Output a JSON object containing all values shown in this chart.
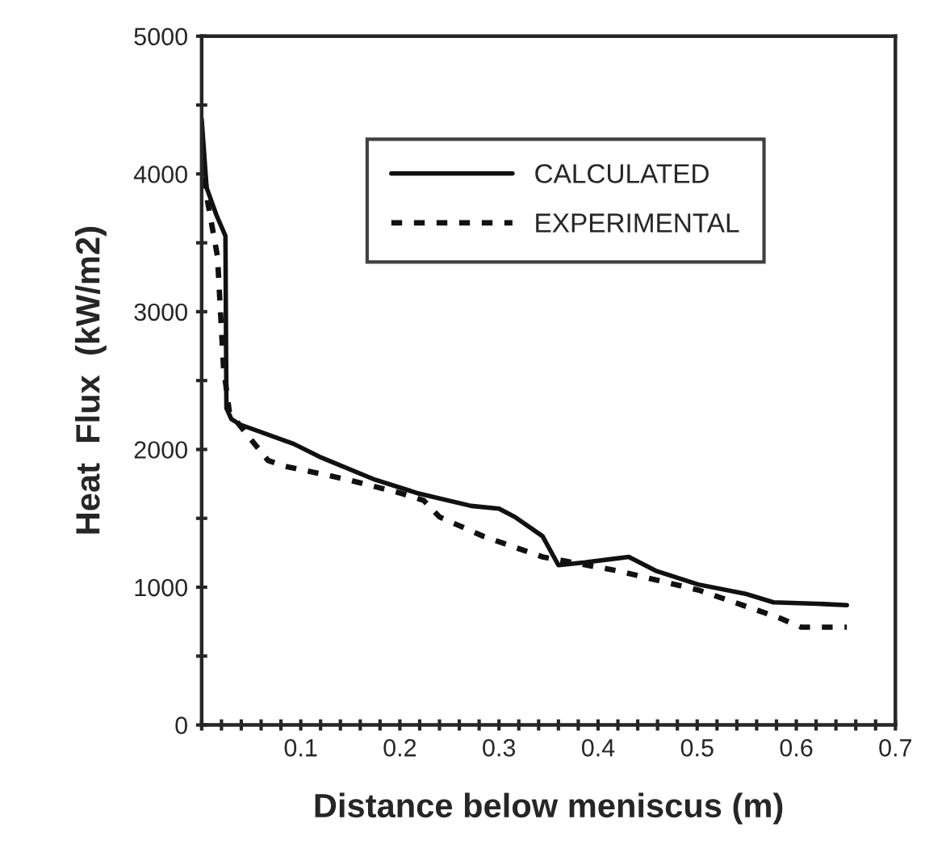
{
  "chart_data": {
    "type": "line",
    "xlabel": "Distance below meniscus (m)",
    "ylabel": "Heat  Flux  (kW/m2)",
    "xlim": [
      0,
      0.7
    ],
    "ylim": [
      0,
      5000
    ],
    "xticks": [
      {
        "value": 0,
        "label": null
      },
      {
        "value": 0.02,
        "label": null
      },
      {
        "value": 0.04,
        "label": null
      },
      {
        "value": 0.06,
        "label": null
      },
      {
        "value": 0.08,
        "label": null
      },
      0.1,
      {
        "value": 0.12,
        "label": null
      },
      {
        "value": 0.14,
        "label": null
      },
      {
        "value": 0.16,
        "label": null
      },
      {
        "value": 0.18,
        "label": null
      },
      0.2,
      {
        "value": 0.22,
        "label": null
      },
      {
        "value": 0.24,
        "label": null
      },
      {
        "value": 0.26,
        "label": null
      },
      {
        "value": 0.28,
        "label": null
      },
      0.3,
      {
        "value": 0.32,
        "label": null
      },
      {
        "value": 0.34,
        "label": null
      },
      {
        "value": 0.36,
        "label": null
      },
      {
        "value": 0.38,
        "label": null
      },
      0.4,
      {
        "value": 0.42,
        "label": null
      },
      {
        "value": 0.44,
        "label": null
      },
      {
        "value": 0.46,
        "label": null
      },
      {
        "value": 0.48,
        "label": null
      },
      0.5,
      {
        "value": 0.52,
        "label": null
      },
      {
        "value": 0.54,
        "label": null
      },
      {
        "value": 0.56,
        "label": null
      },
      {
        "value": 0.58,
        "label": null
      },
      0.6,
      {
        "value": 0.62,
        "label": null
      },
      {
        "value": 0.64,
        "label": null
      },
      {
        "value": 0.66,
        "label": null
      },
      {
        "value": 0.68,
        "label": null
      },
      0.7
    ],
    "yticks": [
      0,
      {
        "value": 500,
        "label": null
      },
      1000,
      {
        "value": 1500,
        "label": null
      },
      2000,
      {
        "value": 2500,
        "label": null
      },
      3000,
      {
        "value": 3500,
        "label": null
      },
      4000,
      {
        "value": 4500,
        "label": null
      },
      5000
    ],
    "grid": false,
    "legend": "top right",
    "marker": "none",
    "series": [
      {
        "name": "CALCULATED",
        "color": "#111111",
        "line_style": "solid",
        "x": [
          0,
          0.005,
          0.015,
          0.024,
          0.025,
          0.03,
          0.039,
          0.093,
          0.121,
          0.175,
          0.219,
          0.272,
          0.3,
          0.316,
          0.344,
          0.36,
          0.387,
          0.431,
          0.458,
          0.501,
          0.55,
          0.577,
          0.621,
          0.651
        ],
        "values": [
          4400,
          3900,
          3700,
          3550,
          2300,
          2220,
          2180,
          2040,
          1940,
          1780,
          1680,
          1590,
          1570,
          1510,
          1370,
          1160,
          1180,
          1220,
          1120,
          1020,
          950,
          890,
          880,
          870
        ]
      },
      {
        "name": "EXPERIMENTAL",
        "color": "#111111",
        "line_style": "dotted",
        "x": [
          0,
          0.003,
          0.006,
          0.011,
          0.016,
          0.022,
          0.028,
          0.05,
          0.067,
          0.083,
          0.148,
          0.202,
          0.224,
          0.24,
          0.284,
          0.344,
          0.419,
          0.501,
          0.582,
          0.605,
          0.651
        ],
        "values": [
          4300,
          4000,
          3800,
          3600,
          3400,
          2600,
          2270,
          2070,
          1920,
          1880,
          1780,
          1680,
          1630,
          1510,
          1370,
          1220,
          1120,
          980,
          780,
          710,
          710
        ]
      }
    ]
  }
}
